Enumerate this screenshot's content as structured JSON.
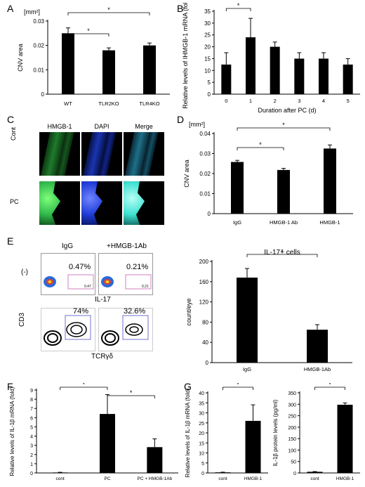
{
  "panels": {
    "A": "A",
    "B": "B",
    "C": "C",
    "D": "D",
    "E": "E",
    "F": "F",
    "G": "G"
  },
  "colors": {
    "bar": "#000000",
    "green": "#2fb84a",
    "blue": "#1f3bd6",
    "cyan": "#3de0d0",
    "gate": "#7070d0",
    "gate_pink": "#d080c0"
  },
  "panel_c": {
    "columns": [
      "HMGB-1",
      "DAPI",
      "Merge"
    ],
    "rows": [
      "Cont",
      "PC"
    ]
  },
  "panel_e": {
    "flow_top_titles": [
      "IgG",
      "+HMGB-1Ab"
    ],
    "flow_top_pct": [
      "0.47%",
      "0.21%"
    ],
    "flow_top_small": [
      "0.47",
      "0.21"
    ],
    "row_label": "(-)",
    "x_label_top": "IL-17",
    "y_label_bottom": "CD3",
    "flow_bottom_pct": [
      "74%",
      "32.6%"
    ],
    "x_label_bottom": "TCRγδ"
  },
  "chart_data": [
    {
      "id": "A",
      "type": "bar",
      "categories": [
        "WT",
        "TLR2KO",
        "TLR4KO"
      ],
      "values": [
        0.025,
        0.018,
        0.02
      ],
      "errors": [
        0.0022,
        0.001,
        0.001
      ],
      "ylabel": "CNV area",
      "unit": "[mm²]",
      "ylim": [
        0,
        0.03
      ],
      "yticks": [
        "0",
        "0.01",
        "0.02",
        "0.03"
      ],
      "significance": [
        "*",
        "*"
      ]
    },
    {
      "id": "B",
      "type": "bar",
      "categories": [
        "0",
        "1",
        "2",
        "3",
        "4",
        "5"
      ],
      "values": [
        12.5,
        24,
        20,
        15,
        15,
        12.5
      ],
      "errors": [
        5,
        8,
        2,
        2.5,
        2.5,
        2.5
      ],
      "ylabel": "Relative levels of IHMGB-1 mRNA (fold)",
      "xlabel": "Duration after PC (d)",
      "ylim": [
        0,
        35
      ],
      "yticks": [
        "0",
        "5",
        "10",
        "15",
        "20",
        "25",
        "30",
        "35"
      ],
      "significance": [
        "*"
      ]
    },
    {
      "id": "D",
      "type": "bar",
      "categories": [
        "IgG",
        "HMGB-1 Ab",
        "HMGB-1"
      ],
      "values": [
        0.0258,
        0.0218,
        0.0325
      ],
      "errors": [
        0.0008,
        0.0008,
        0.0018
      ],
      "ylabel": "CNV area",
      "unit": "[mm²]",
      "ylim": [
        0,
        0.04
      ],
      "yticks": [
        "0",
        "0.01",
        "0.02",
        "0.03",
        "0.04"
      ],
      "significance": [
        "*",
        "*"
      ]
    },
    {
      "id": "E",
      "type": "bar",
      "title": "IL-17+ cells",
      "categories": [
        "IgG",
        "HMGB-1Ab"
      ],
      "values": [
        168,
        65
      ],
      "errors": [
        18,
        10
      ],
      "ylabel": "count/eye",
      "ylim": [
        0,
        200
      ],
      "yticks": [
        "0",
        "40",
        "80",
        "120",
        "160",
        "200"
      ],
      "significance": [
        "*"
      ]
    },
    {
      "id": "F",
      "type": "bar",
      "categories": [
        "cont",
        "PC",
        "PC + HMGB-1Ab"
      ],
      "values": [
        0.05,
        6.4,
        2.8
      ],
      "errors": [
        0.02,
        2.1,
        0.9
      ],
      "ylabel": "Relative levels of IL-1β mRNA (fold)",
      "ylim": [
        0,
        9
      ],
      "yticks": [
        "0",
        "1",
        "2",
        "3",
        "4",
        "5",
        "6",
        "7",
        "8",
        "9"
      ],
      "significance": [
        "*",
        "*"
      ]
    },
    {
      "id": "G1",
      "type": "bar",
      "categories": [
        "cont",
        "HMGB-1"
      ],
      "values": [
        0.3,
        26
      ],
      "errors": [
        0.1,
        8
      ],
      "ylabel": "Relative levels of IL-1β mRNA (fold)",
      "ylim": [
        0,
        40
      ],
      "yticks": [
        "0",
        "5",
        "10",
        "15",
        "20",
        "25",
        "30",
        "35",
        "40"
      ],
      "significance": [
        "*"
      ]
    },
    {
      "id": "G2",
      "type": "bar",
      "categories": [
        "cont",
        "HMGB-1"
      ],
      "values": [
        5,
        298
      ],
      "errors": [
        1,
        8
      ],
      "ylabel": "IL-1β protein levels (pg/ml)",
      "ylim": [
        0,
        350
      ],
      "yticks": [
        "0",
        "50",
        "100",
        "150",
        "200",
        "250",
        "300",
        "350"
      ],
      "significance": [
        "*"
      ]
    }
  ]
}
